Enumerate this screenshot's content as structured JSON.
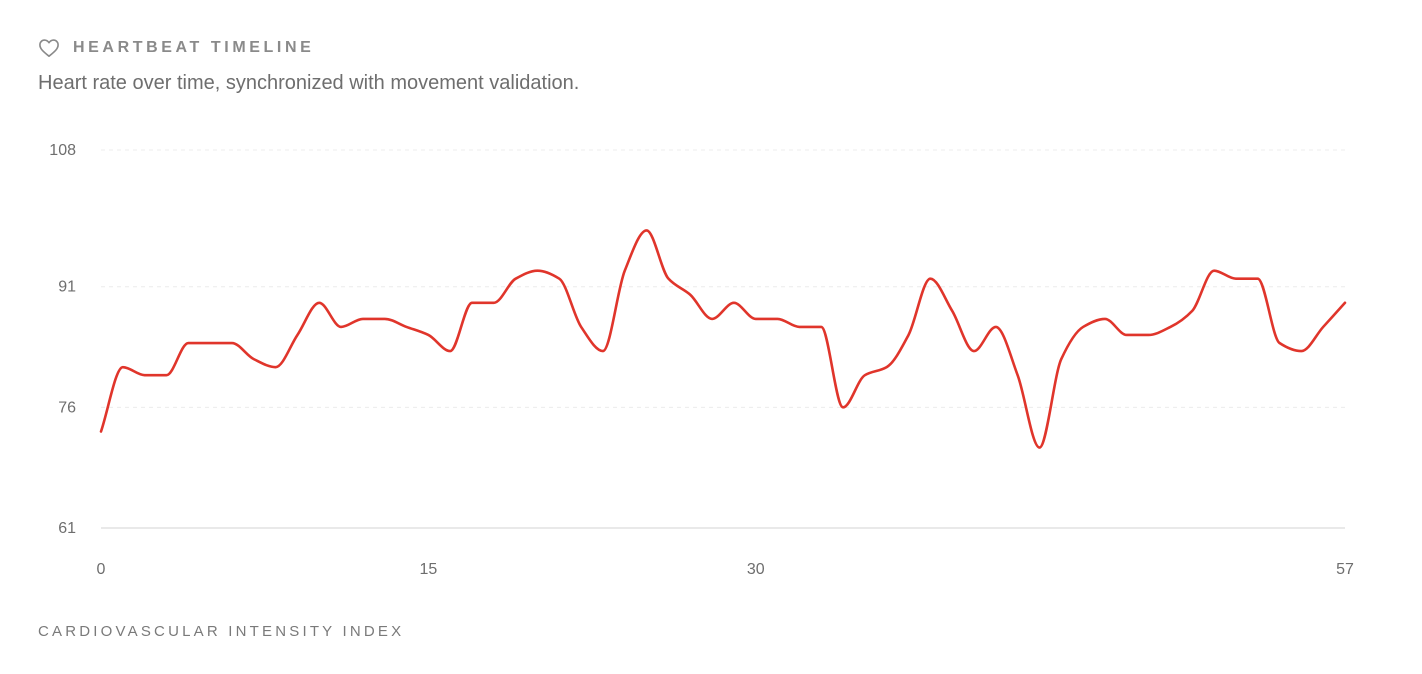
{
  "header": {
    "title": "HEARTBEAT TIMELINE",
    "subtitle": "Heart rate over time, synchronized with movement validation.",
    "icon": "heart-outline-icon"
  },
  "footer": {
    "label": "CARDIOVASCULAR INTENSITY INDEX"
  },
  "colors": {
    "line": "#e0352b",
    "grid": "#ececec",
    "axis": "#dcdcdc"
  },
  "chart_data": {
    "type": "line",
    "ylim": [
      61,
      108
    ],
    "y_ticks": [
      108,
      91,
      76,
      61
    ],
    "xlim": [
      0,
      57
    ],
    "x_ticks": [
      0,
      15,
      30,
      57
    ],
    "grid": "horizontal dashed",
    "x": [
      0,
      1,
      2,
      3,
      4,
      5,
      6,
      7,
      8,
      9,
      10,
      11,
      12,
      13,
      14,
      15,
      16,
      17,
      18,
      19,
      20,
      21,
      22,
      23,
      24,
      25,
      26,
      27,
      28,
      29,
      30,
      31,
      32,
      33,
      34,
      35,
      36,
      37,
      38,
      39,
      40,
      41,
      42,
      43,
      44,
      45,
      46,
      47,
      48,
      49,
      50,
      51,
      52,
      53,
      54,
      55,
      56,
      57
    ],
    "series": [
      {
        "values": [
          73,
          81,
          80,
          80,
          84,
          84,
          84,
          82,
          81,
          85,
          89,
          86,
          87,
          87,
          86,
          85,
          83,
          89,
          89,
          92,
          93,
          92,
          86,
          83,
          93,
          98,
          92,
          90,
          87,
          89,
          87,
          87,
          86,
          86,
          76,
          80,
          81,
          85,
          92,
          88,
          83,
          86,
          80,
          71,
          82,
          86,
          87,
          85,
          85,
          86,
          88,
          93,
          92,
          92,
          84,
          83,
          86,
          89
        ]
      }
    ]
  }
}
